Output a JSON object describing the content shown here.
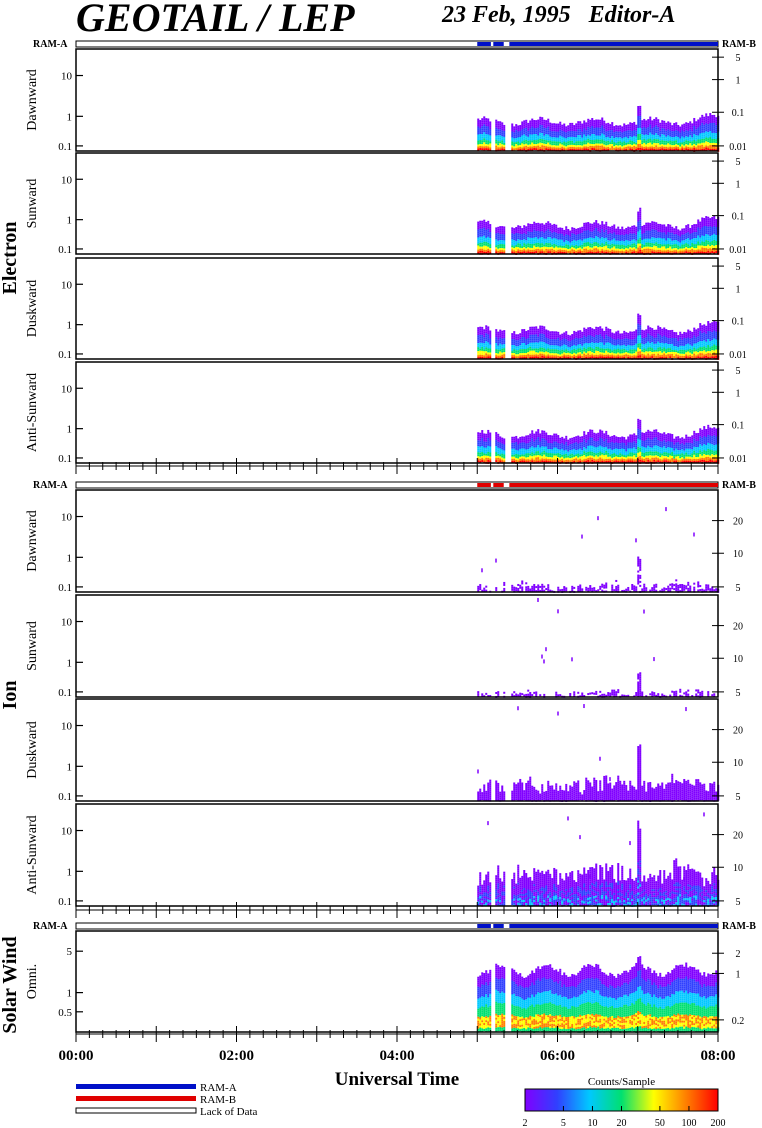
{
  "header": {
    "title": "GEOTAIL / LEP",
    "date": "23 Feb, 1995",
    "editor": "Editor-A"
  },
  "labels": {
    "ram_a": "RAM-A",
    "ram_b": "RAM-B",
    "x_axis_title": "Universal Time",
    "lack_of_data": "Lack of Data",
    "colorbar_title": "Counts/Sample"
  },
  "colors": {
    "ram_a": "#0010c8",
    "ram_b": "#e00000",
    "frame": "#000000"
  },
  "chart_data": {
    "type": "heatmap",
    "x_ticks": [
      "00:00",
      "02:00",
      "04:00",
      "06:00",
      "08:00"
    ],
    "xlim_hours": [
      0,
      8
    ],
    "data_start_hour": 5.0,
    "data_gaps_hours": [
      [
        5.17,
        5.2
      ],
      [
        5.33,
        5.4
      ]
    ],
    "colorbar": {
      "ticks": [
        "2",
        "5",
        "10",
        "20",
        "50",
        "100",
        "200"
      ],
      "colors": [
        "#8000ff",
        "#3040ff",
        "#00c8ff",
        "#00e070",
        "#ffff00",
        "#ff8000",
        "#ff0000"
      ]
    },
    "groups": [
      {
        "name": "Electron",
        "ram_bar": [
          {
            "from": 5.0,
            "to": 8.0,
            "mode": "RAM-A"
          }
        ],
        "panels": [
          {
            "label": "Dawnward",
            "left_ticks": [
              "10",
              "1",
              "0.1"
            ],
            "right_ticks": [
              "5",
              "1",
              "0.1",
              "0.01"
            ]
          },
          {
            "label": "Sunward",
            "left_ticks": [
              "10",
              "1",
              "0.1"
            ],
            "right_ticks": [
              "5",
              "1",
              "0.1",
              "0.01"
            ]
          },
          {
            "label": "Duskward",
            "left_ticks": [
              "10",
              "1",
              "0.1"
            ],
            "right_ticks": [
              "5",
              "1",
              "0.1",
              "0.01"
            ]
          },
          {
            "label": "Anti-Sunward",
            "left_ticks": [
              "10",
              "1",
              "0.1"
            ],
            "right_ticks": [
              "5",
              "1",
              "0.1",
              "0.01"
            ]
          }
        ]
      },
      {
        "name": "Ion",
        "ram_bar": [
          {
            "from": 5.0,
            "to": 8.0,
            "mode": "RAM-B"
          }
        ],
        "panels": [
          {
            "label": "Dawnward",
            "left_ticks": [
              "10",
              "1",
              "0.1"
            ],
            "right_ticks": [
              "20",
              "10",
              "5"
            ]
          },
          {
            "label": "Sunward",
            "left_ticks": [
              "10",
              "1",
              "0.1"
            ],
            "right_ticks": [
              "20",
              "10",
              "5"
            ]
          },
          {
            "label": "Duskward",
            "left_ticks": [
              "10",
              "1",
              "0.1"
            ],
            "right_ticks": [
              "20",
              "10",
              "5"
            ]
          },
          {
            "label": "Anti-Sunward",
            "left_ticks": [
              "10",
              "1",
              "0.1"
            ],
            "right_ticks": [
              "20",
              "10",
              "5"
            ]
          }
        ]
      },
      {
        "name": "Solar Wind",
        "ram_bar": [
          {
            "from": 5.0,
            "to": 8.0,
            "mode": "RAM-A"
          }
        ],
        "panels": [
          {
            "label": "Omni.",
            "left_ticks": [
              "5",
              "1",
              "0.5"
            ],
            "right_ticks": [
              "2",
              "1",
              "0.2"
            ]
          }
        ]
      }
    ]
  }
}
